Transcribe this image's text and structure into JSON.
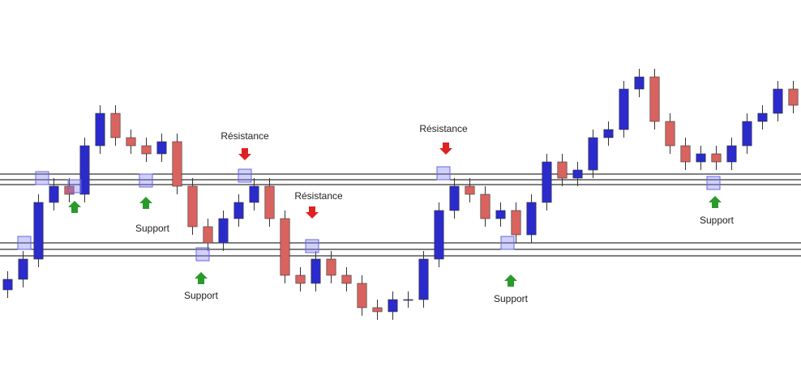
{
  "chart_data": {
    "type": "candlestick",
    "annotations": [
      "Résistance",
      "Résistance",
      "Résistance",
      "Support",
      "Support",
      "Support",
      "Support"
    ],
    "open": [
      120,
      133,
      158,
      228,
      248,
      238,
      298,
      338,
      308,
      298,
      288,
      303,
      248,
      198,
      178,
      208,
      228,
      248,
      208,
      138,
      128,
      158,
      138,
      128,
      98,
      93,
      108,
      108,
      158,
      218,
      248,
      238,
      208,
      218,
      188,
      228,
      278,
      258,
      268,
      308,
      318,
      368,
      383,
      328,
      298,
      278,
      288,
      278,
      298,
      328,
      338,
      368
    ],
    "high": [
      143,
      168,
      238,
      258,
      258,
      308,
      348,
      348,
      318,
      308,
      313,
      313,
      258,
      208,
      218,
      238,
      258,
      258,
      218,
      148,
      168,
      168,
      148,
      138,
      108,
      118,
      118,
      168,
      228,
      258,
      258,
      248,
      228,
      228,
      238,
      288,
      288,
      278,
      318,
      328,
      378,
      393,
      393,
      338,
      308,
      298,
      298,
      308,
      338,
      348,
      378,
      378
    ],
    "low": [
      110,
      123,
      148,
      218,
      228,
      228,
      288,
      298,
      288,
      278,
      278,
      238,
      188,
      168,
      168,
      198,
      218,
      198,
      128,
      118,
      118,
      128,
      118,
      88,
      83,
      83,
      98,
      98,
      148,
      208,
      228,
      198,
      198,
      178,
      178,
      218,
      248,
      248,
      258,
      298,
      308,
      358,
      318,
      288,
      268,
      268,
      268,
      268,
      288,
      318,
      328,
      338
    ],
    "close": [
      133,
      158,
      228,
      248,
      238,
      298,
      338,
      308,
      298,
      288,
      303,
      248,
      198,
      178,
      208,
      228,
      248,
      208,
      138,
      128,
      158,
      138,
      128,
      98,
      93,
      108,
      108,
      158,
      218,
      248,
      238,
      208,
      218,
      188,
      228,
      278,
      258,
      268,
      308,
      318,
      368,
      383,
      328,
      298,
      278,
      288,
      278,
      298,
      328,
      338,
      368,
      348
    ],
    "levels": [
      263,
      256,
      250,
      178,
      170,
      162
    ],
    "up_color": "#2b2bcc",
    "down_color": "#d9635f",
    "ylim": [
      0,
      478
    ]
  }
}
